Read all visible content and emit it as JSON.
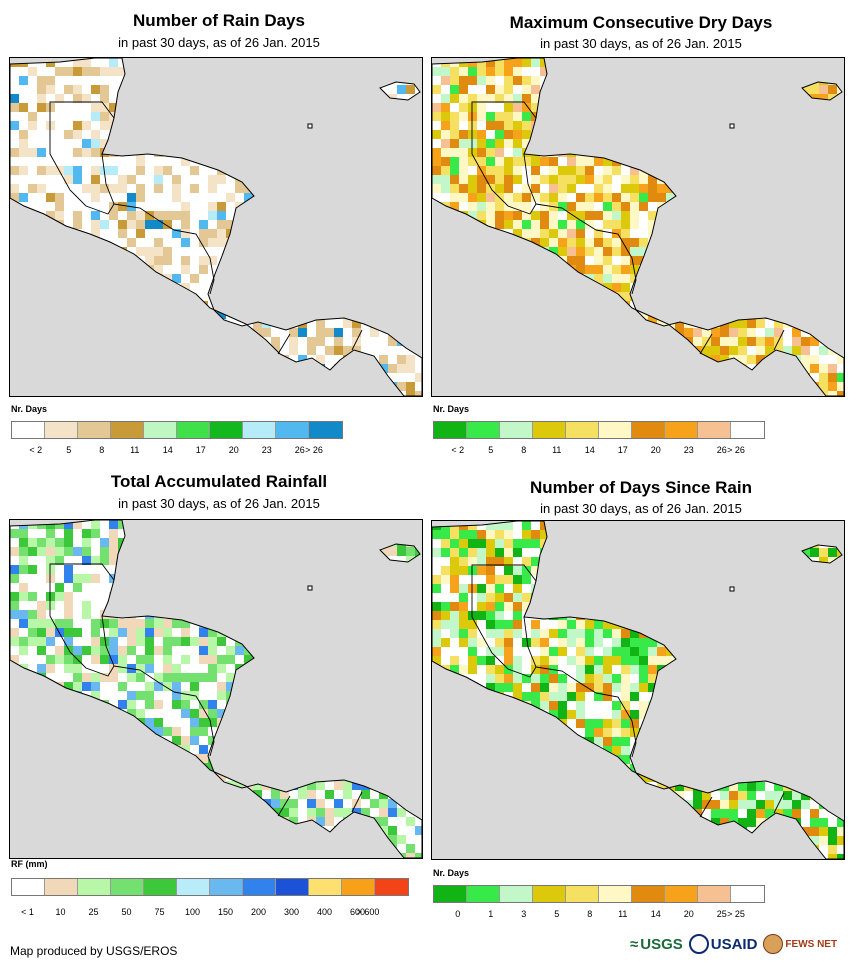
{
  "panels": [
    {
      "id": "rain-days",
      "title": "Number of Rain Days",
      "subtitle": "in past 30 days, as of 26 Jan. 2015",
      "legend_title": "Nr. Days",
      "legend_labels": [
        "< 2",
        "5",
        "8",
        "11",
        "14",
        "17",
        "20",
        "23",
        "26",
        "> 26"
      ],
      "legend_colors": [
        "#ffffff",
        "#f5e3c8",
        "#e3c896",
        "#c99a38",
        "#bff7c2",
        "#3fe04a",
        "#13b81e",
        "#b6ecf8",
        "#52b8f0",
        "#1289c9"
      ],
      "palette_index": [
        0,
        1,
        2,
        3,
        7,
        8,
        9
      ],
      "palette_weights": [
        50,
        20,
        18,
        4,
        3,
        3,
        2
      ]
    },
    {
      "id": "max-dry-days",
      "title": "Maximum Consecutive Dry Days",
      "subtitle": "in past 30 days, as of 26 Jan. 2015",
      "legend_title": "Nr. Days",
      "legend_labels": [
        "< 2",
        "5",
        "8",
        "11",
        "14",
        "17",
        "20",
        "23",
        "26",
        "> 26"
      ],
      "legend_colors": [
        "#11b414",
        "#38e94a",
        "#c2f7c9",
        "#ddc90c",
        "#f5e062",
        "#fff8c4",
        "#e08a10",
        "#f6a21a",
        "#f6c092",
        "#ffffff"
      ],
      "palette_index": [
        9,
        5,
        4,
        3,
        6,
        7,
        8,
        2,
        1
      ],
      "palette_weights": [
        14,
        22,
        20,
        10,
        14,
        8,
        4,
        4,
        4
      ]
    },
    {
      "id": "total-rainfall",
      "title": "Total Accumulated Rainfall",
      "subtitle": "in past 30 days, as of 26 Jan. 2015",
      "legend_title": "RF (mm)",
      "legend_labels": [
        "< 1",
        "10",
        "25",
        "50",
        "75",
        "100",
        "150",
        "200",
        "300",
        "400",
        "600",
        "> 600"
      ],
      "legend_colors": [
        "#ffffff",
        "#f0d8b8",
        "#b8f7a8",
        "#73e070",
        "#3cc83a",
        "#b8ecf8",
        "#6ab8f0",
        "#3282ee",
        "#1c52d8",
        "#fde070",
        "#f7a11a",
        "#f24416"
      ],
      "palette_index": [
        0,
        1,
        2,
        3,
        4,
        6,
        7
      ],
      "palette_weights": [
        34,
        14,
        16,
        16,
        10,
        6,
        4
      ]
    },
    {
      "id": "days-since-rain",
      "title": "Number of Days Since Rain",
      "subtitle": "in past 30 days, as of 26 Jan. 2015",
      "legend_title": "Nr. Days",
      "legend_labels": [
        "0",
        "1",
        "3",
        "5",
        "8",
        "11",
        "14",
        "20",
        "25",
        "> 25"
      ],
      "legend_colors": [
        "#11b414",
        "#38e94a",
        "#c2f7c9",
        "#ddc90c",
        "#f5e062",
        "#fff8c4",
        "#e08a10",
        "#f6a21a",
        "#f6c092",
        "#ffffff"
      ],
      "palette_index": [
        9,
        2,
        1,
        0,
        3,
        4,
        5,
        6,
        7
      ],
      "palette_weights": [
        22,
        12,
        18,
        8,
        10,
        10,
        8,
        8,
        4
      ]
    }
  ],
  "footer": {
    "credit": "Map produced by USGS/EROS"
  },
  "logos": {
    "usgs": "USGS",
    "usaid": "USAID",
    "fews": "FEWS NET"
  }
}
